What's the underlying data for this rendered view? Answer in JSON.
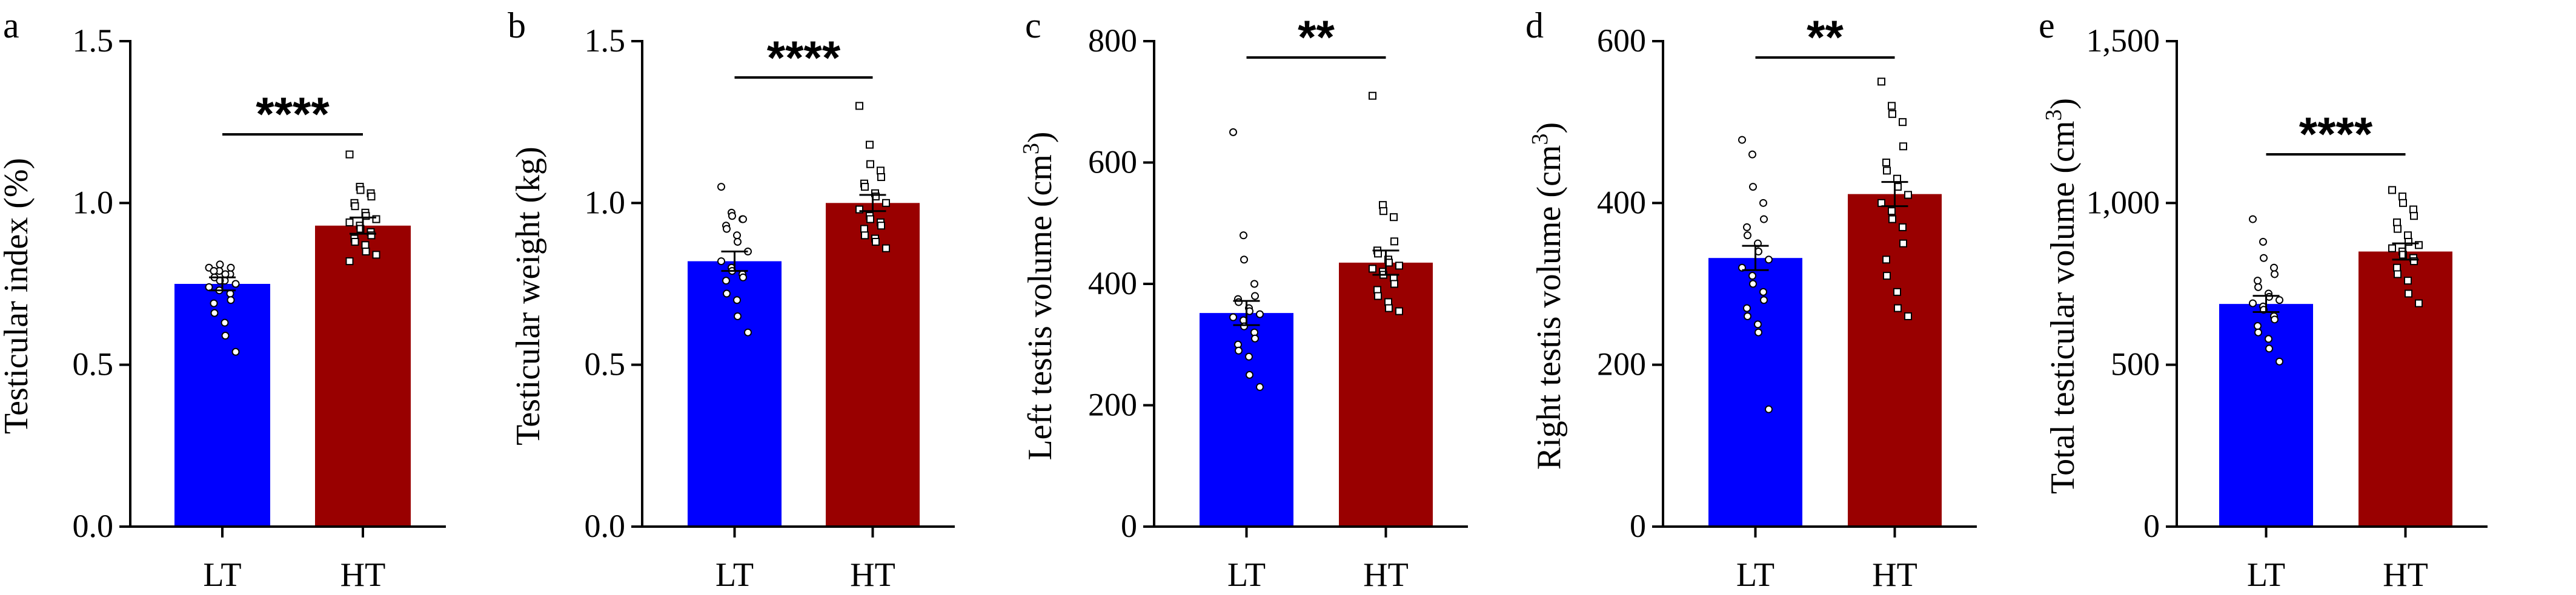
{
  "colors": {
    "lt": "#0000ff",
    "ht": "#990000",
    "axis": "#000000"
  },
  "chart_data": [
    {
      "type": "bar",
      "panel_letter": "a",
      "ylabel": "Testicular index (%)",
      "ylabel_sup": "",
      "categories": [
        "LT",
        "HT"
      ],
      "values": [
        0.75,
        0.93
      ],
      "sem": [
        0.02,
        0.025
      ],
      "ylim": [
        0,
        1.5
      ],
      "yticks": [
        0,
        0.5,
        1.0,
        1.5
      ],
      "ytick_labels": [
        "0.0",
        "0.5",
        "1.0",
        "1.5"
      ],
      "significance": "****",
      "points": [
        [
          0.8,
          0.79,
          0.81,
          0.78,
          0.8,
          0.79,
          0.77,
          0.76,
          0.78,
          0.75,
          0.74,
          0.73,
          0.76,
          0.72,
          0.7,
          0.69,
          0.66,
          0.63,
          0.59,
          0.54
        ],
        [
          1.15,
          1.05,
          1.04,
          1.03,
          1.02,
          1.0,
          0.99,
          0.97,
          0.96,
          0.95,
          0.94,
          0.93,
          0.92,
          0.91,
          0.9,
          0.89,
          0.88,
          0.87,
          0.85,
          0.84,
          0.82
        ]
      ]
    },
    {
      "type": "bar",
      "panel_letter": "b",
      "ylabel": "Testicular weight (kg)",
      "ylabel_sup": "",
      "categories": [
        "LT",
        "HT"
      ],
      "values": [
        0.82,
        1.0
      ],
      "sem": [
        0.03,
        0.025
      ],
      "ylim": [
        0,
        1.5
      ],
      "yticks": [
        0,
        0.5,
        1.0,
        1.5
      ],
      "ytick_labels": [
        "0.0",
        "0.5",
        "1.0",
        "1.5"
      ],
      "significance": "****",
      "points": [
        [
          1.05,
          0.97,
          0.96,
          0.95,
          0.95,
          0.93,
          0.92,
          0.9,
          0.88,
          0.85,
          0.82,
          0.8,
          0.79,
          0.78,
          0.77,
          0.76,
          0.72,
          0.7,
          0.65,
          0.6
        ],
        [
          1.3,
          1.18,
          1.12,
          1.1,
          1.08,
          1.06,
          1.05,
          1.03,
          1.02,
          1.0,
          0.98,
          0.96,
          0.95,
          0.94,
          0.93,
          0.92,
          0.9,
          0.89,
          0.88,
          0.86
        ]
      ]
    },
    {
      "type": "bar",
      "panel_letter": "c",
      "ylabel": "Left testis volume (cm",
      "ylabel_sup": "3",
      "categories": [
        "LT",
        "HT"
      ],
      "values": [
        352,
        435
      ],
      "sem": [
        20,
        20
      ],
      "ylim": [
        0,
        800
      ],
      "yticks": [
        0,
        200,
        400,
        600,
        800
      ],
      "ytick_labels": [
        "0",
        "200",
        "400",
        "600",
        "800"
      ],
      "significance": "**",
      "points": [
        [
          650,
          480,
          440,
          400,
          380,
          375,
          370,
          360,
          355,
          350,
          345,
          340,
          330,
          320,
          310,
          300,
          290,
          280,
          250,
          230
        ],
        [
          710,
          530,
          520,
          510,
          470,
          455,
          450,
          440,
          435,
          430,
          425,
          420,
          415,
          410,
          400,
          390,
          380,
          370,
          360,
          355
        ]
      ]
    },
    {
      "type": "bar",
      "panel_letter": "d",
      "ylabel": "Right testis volume (cm",
      "ylabel_sup": "3",
      "categories": [
        "LT",
        "HT"
      ],
      "values": [
        332,
        411
      ],
      "sem": [
        15,
        15
      ],
      "ylim": [
        0,
        600
      ],
      "yticks": [
        0,
        200,
        400,
        600
      ],
      "ytick_labels": [
        "0",
        "200",
        "400",
        "600"
      ],
      "significance": "**",
      "points": [
        [
          478,
          460,
          420,
          400,
          380,
          370,
          360,
          350,
          340,
          330,
          320,
          310,
          300,
          290,
          280,
          270,
          260,
          250,
          240,
          145
        ],
        [
          550,
          520,
          510,
          500,
          470,
          450,
          440,
          430,
          420,
          410,
          400,
          390,
          380,
          370,
          350,
          330,
          310,
          290,
          270,
          260
        ]
      ]
    },
    {
      "type": "bar",
      "panel_letter": "e",
      "ylabel": "Total testicular volume (cm",
      "ylabel_sup": "3",
      "categories": [
        "LT",
        "HT"
      ],
      "values": [
        688,
        850
      ],
      "sem": [
        25,
        25
      ],
      "ylim": [
        0,
        1500
      ],
      "yticks": [
        0,
        500,
        1000,
        1500
      ],
      "ytick_labels": [
        "0",
        "500",
        "1,000",
        "1,500"
      ],
      "significance": "****",
      "points": [
        [
          950,
          880,
          830,
          800,
          780,
          760,
          740,
          720,
          710,
          700,
          690,
          680,
          670,
          650,
          640,
          620,
          600,
          580,
          550,
          510
        ],
        [
          1040,
          1020,
          1000,
          980,
          960,
          940,
          920,
          900,
          880,
          870,
          860,
          850,
          840,
          830,
          820,
          800,
          780,
          760,
          720,
          690
        ]
      ]
    }
  ]
}
